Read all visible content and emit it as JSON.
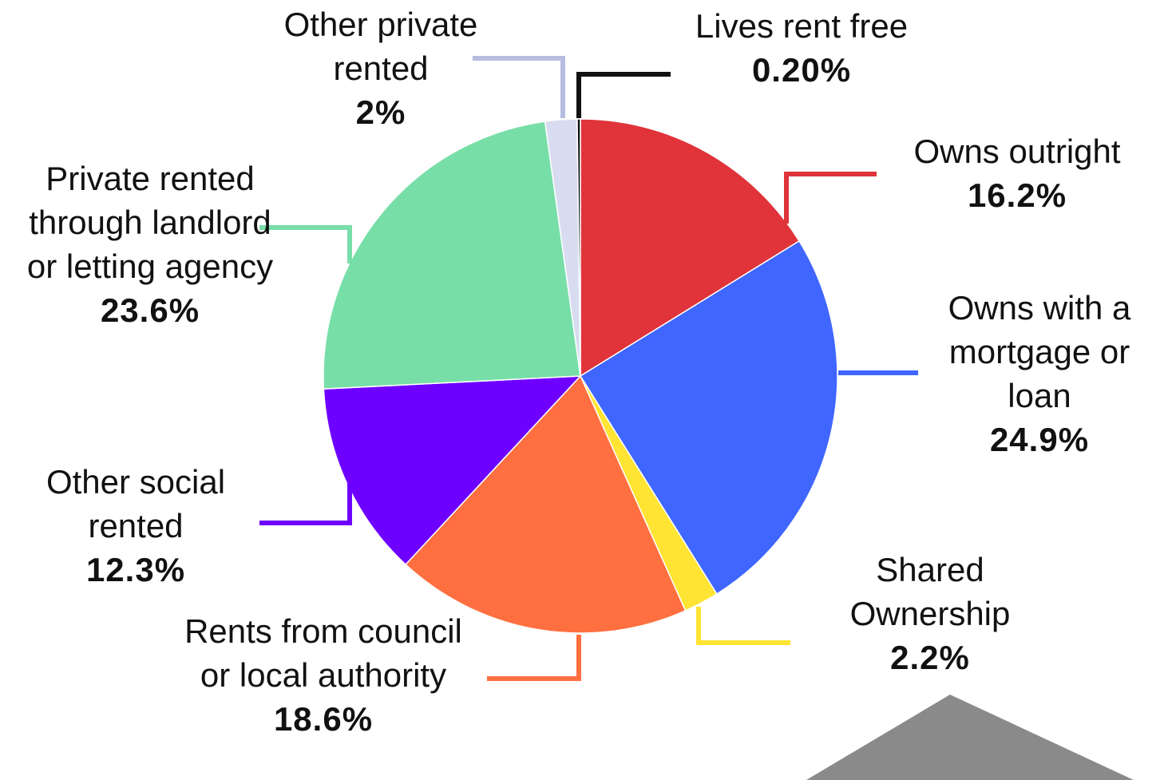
{
  "chart_data": {
    "type": "pie",
    "categories": [
      "Owns outright",
      "Owns with a mortgage or loan",
      "Shared Ownership",
      "Rents from council or local authority",
      "Other social rented",
      "Private rented through landlord or letting agency",
      "Other private rented",
      "Lives rent free"
    ],
    "values": [
      16.2,
      24.9,
      2.2,
      18.6,
      12.3,
      23.6,
      2,
      0.2
    ],
    "value_labels": [
      "16.2%",
      "24.9%",
      "2.2%",
      "18.6%",
      "12.3%",
      "23.6%",
      "2%",
      "0.20%"
    ],
    "colors": [
      "#e0333a",
      "#3f66ff",
      "#ffe433",
      "#ff6f40",
      "#6e00ff",
      "#78dea8",
      "#d8dcf0",
      "#111111"
    ]
  }
}
